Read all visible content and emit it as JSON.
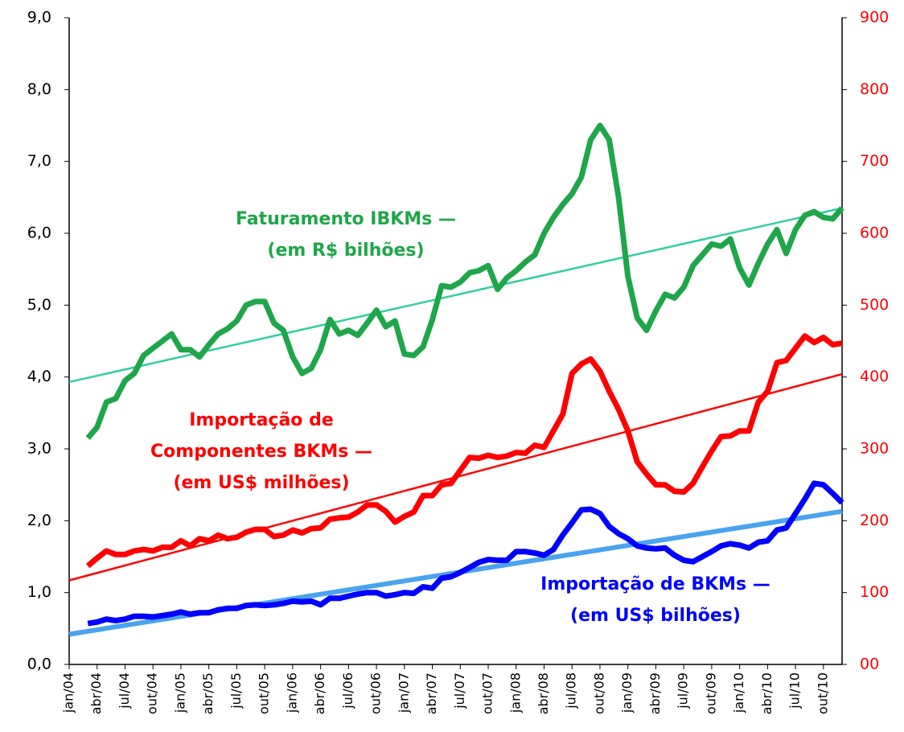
{
  "chart_data": {
    "type": "line",
    "categories": [
      "jan/04",
      null,
      null,
      "abr/04",
      null,
      null,
      "jul/04",
      null,
      null,
      "out/04",
      null,
      null,
      "jan/05",
      null,
      null,
      "abr/05",
      null,
      null,
      "jul/05",
      null,
      null,
      "out/05",
      null,
      null,
      "jan/06",
      null,
      null,
      "abr/06",
      null,
      null,
      "jul/06",
      null,
      null,
      "out/06",
      null,
      null,
      "jan/07",
      null,
      null,
      "abr/07",
      null,
      null,
      "jul/07",
      null,
      null,
      "out/07",
      null,
      null,
      "jan/08",
      null,
      null,
      "abr/08",
      null,
      null,
      "jul/08",
      null,
      null,
      "out/08",
      null,
      null,
      "jan/09",
      null,
      null,
      "abr/09",
      null,
      null,
      "jul/09",
      null,
      null,
      "out/09",
      null,
      null,
      "jan/10",
      null,
      null,
      "abr/10",
      null,
      null,
      "jul/10",
      null,
      null,
      "out/10",
      null,
      null
    ],
    "ylim": [
      0,
      9
    ],
    "yticks": [
      {
        "value": 0,
        "label": "0,0"
      },
      {
        "value": 1,
        "label": "1,0"
      },
      {
        "value": 2,
        "label": "2,0"
      },
      {
        "value": 3,
        "label": "3,0"
      },
      {
        "value": 4,
        "label": "4,0"
      },
      {
        "value": 5,
        "label": "5,0"
      },
      {
        "value": 6,
        "label": "6,0"
      },
      {
        "value": 7,
        "label": "7,0"
      },
      {
        "value": 8,
        "label": "8,0"
      },
      {
        "value": 9,
        "label": "9,0"
      }
    ],
    "y2lim": [
      0,
      900
    ],
    "y2ticks": [
      {
        "value": 0,
        "label": "00"
      },
      100,
      200,
      300,
      400,
      500,
      600,
      700,
      800,
      900
    ],
    "series": [
      {
        "color": "#1fa64a",
        "axis": "y",
        "values": [
          null,
          null,
          3.15,
          3.3,
          3.65,
          3.7,
          3.95,
          4.05,
          4.3,
          4.4,
          4.5,
          4.6,
          4.38,
          4.38,
          4.28,
          4.45,
          4.6,
          4.67,
          4.78,
          5.0,
          5.05,
          5.05,
          4.75,
          4.65,
          4.28,
          4.05,
          4.12,
          4.38,
          4.8,
          4.6,
          4.65,
          4.58,
          4.75,
          4.93,
          4.7,
          4.78,
          4.32,
          4.3,
          4.42,
          4.8,
          5.27,
          5.25,
          5.32,
          5.45,
          5.48,
          5.55,
          5.22,
          5.38,
          5.48,
          5.6,
          5.7,
          6.0,
          6.22,
          6.4,
          6.55,
          6.78,
          7.3,
          7.5,
          7.3,
          6.5,
          5.4,
          4.82,
          4.65,
          4.92,
          5.15,
          5.1,
          5.25,
          5.55,
          5.7,
          5.85,
          5.82,
          5.92,
          5.52,
          5.28,
          5.58,
          5.85,
          6.05,
          5.72,
          6.05,
          6.25,
          6.3,
          6.22,
          6.2,
          6.35
        ]
      },
      {
        "color": "#ff0000",
        "axis": "y2",
        "values": [
          null,
          null,
          137,
          148,
          158,
          153,
          153,
          158,
          160,
          158,
          163,
          163,
          172,
          165,
          175,
          172,
          180,
          175,
          177,
          184,
          188,
          188,
          178,
          180,
          187,
          183,
          189,
          190,
          202,
          204,
          205,
          212,
          222,
          222,
          213,
          198,
          206,
          212,
          235,
          235,
          250,
          252,
          270,
          288,
          287,
          291,
          288,
          290,
          295,
          294,
          305,
          302,
          325,
          348,
          405,
          418,
          425,
          408,
          380,
          355,
          325,
          282,
          265,
          250,
          250,
          241,
          240,
          252,
          275,
          297,
          317,
          318,
          325,
          325,
          365,
          380,
          420,
          423,
          440,
          457,
          448,
          455,
          445,
          447
        ]
      },
      {
        "color": "#0000ff",
        "axis": "y",
        "values": [
          null,
          null,
          0.57,
          0.59,
          0.63,
          0.61,
          0.63,
          0.67,
          0.67,
          0.66,
          0.68,
          0.7,
          0.73,
          0.7,
          0.72,
          0.72,
          0.76,
          0.78,
          0.78,
          0.82,
          0.83,
          0.82,
          0.83,
          0.85,
          0.88,
          0.87,
          0.88,
          0.83,
          0.92,
          0.92,
          0.95,
          0.98,
          1.0,
          1.0,
          0.95,
          0.97,
          1.0,
          0.99,
          1.08,
          1.06,
          1.2,
          1.22,
          1.28,
          1.35,
          1.42,
          1.46,
          1.45,
          1.45,
          1.57,
          1.57,
          1.55,
          1.52,
          1.6,
          1.8,
          1.97,
          2.15,
          2.16,
          2.1,
          1.92,
          1.82,
          1.75,
          1.65,
          1.62,
          1.61,
          1.62,
          1.52,
          1.45,
          1.43,
          1.5,
          1.57,
          1.65,
          1.68,
          1.66,
          1.62,
          1.7,
          1.72,
          1.87,
          1.9,
          2.1,
          2.3,
          2.52,
          2.5,
          2.38,
          2.25
        ]
      }
    ],
    "trendlines": [
      {
        "color": "#2fcf9f",
        "axis": "y",
        "width": 2.5,
        "values": [
          3.93,
          6.35
        ]
      },
      {
        "color": "#ff0000",
        "axis": "y2",
        "width": 2.5,
        "values": [
          117,
          404
        ]
      },
      {
        "color": "#4aa3ee",
        "axis": "y",
        "width": 6,
        "values": [
          0.42,
          2.13
        ]
      }
    ],
    "annotations": [
      {
        "lines": [
          "Faturamento IBKMs —",
          "(em R$ bilhões)"
        ],
        "color": "#1fa64a"
      },
      {
        "lines": [
          "Importação de",
          "Componentes BKMs —",
          "(em US$ milhões)"
        ],
        "color": "#ff0000"
      },
      {
        "lines": [
          "Importação de BKMs —",
          "(em US$ bilhões)"
        ],
        "color": "#0000ff"
      }
    ],
    "y_tick_color": "#000000",
    "y2_tick_color": "#ff0000"
  }
}
